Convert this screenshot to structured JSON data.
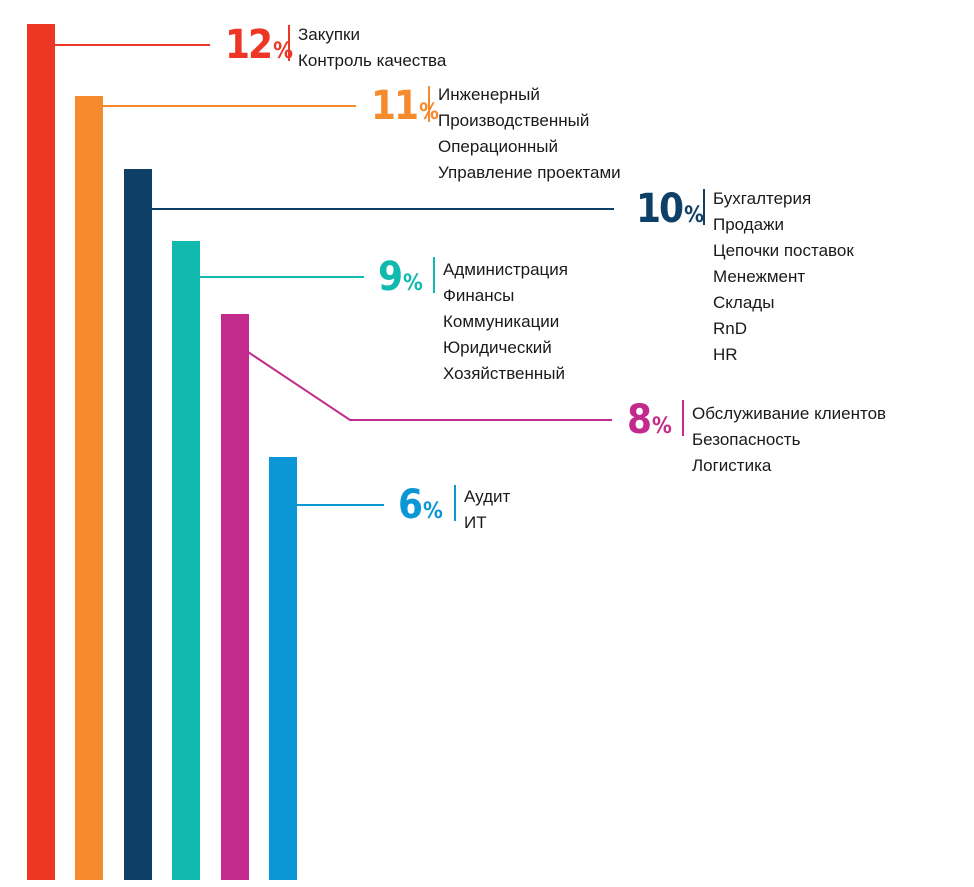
{
  "chart_data": {
    "type": "bar",
    "unit": "%",
    "series": [
      {
        "value": 12,
        "color": "#ee3624",
        "labels": [
          "Закупки",
          "Контроль качества"
        ]
      },
      {
        "value": 11,
        "color": "#f68b2e",
        "labels": [
          "Инженерный",
          "Производственный",
          "Операционный",
          "Управление проектами"
        ]
      },
      {
        "value": 10,
        "color": "#0e3f66",
        "labels": [
          "Бухгалтерия",
          "Продажи",
          "Цепочки поставок",
          "Менежмент",
          "Склады",
          "RnD",
          "HR"
        ]
      },
      {
        "value": 9,
        "color": "#11b9ae",
        "labels": [
          "Администрация",
          "Финансы",
          "Коммуникации",
          "Юридический",
          "Хозяйственный"
        ]
      },
      {
        "value": 8,
        "color": "#c22a8c",
        "labels": [
          "Обслуживание клиентов",
          "Безопасность",
          "Логистика"
        ]
      },
      {
        "value": 6,
        "color": "#0b97d6",
        "labels": [
          "Аудит",
          "ИТ"
        ]
      }
    ]
  }
}
